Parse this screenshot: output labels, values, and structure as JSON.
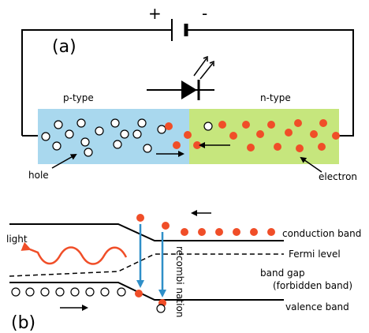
{
  "colors": {
    "p_region": "#a9d8ee",
    "n_region": "#c6e67d",
    "electron": "#f04e28",
    "hole_fill": "#ffffff",
    "wire": "#000000",
    "recombination_arrow": "#2f8fc8",
    "light_wave": "#f04e28"
  },
  "panel_a": {
    "label": "(a)",
    "battery": {
      "plus": "+",
      "minus": "-"
    },
    "p_type_label": "p-type",
    "n_type_label": "n-type",
    "hole_label": "hole",
    "electron_label": "electron",
    "icons": [
      "battery-icon",
      "led-diode-icon",
      "emitted-light-arrows-icon"
    ]
  },
  "panel_b": {
    "label": "(b)",
    "light_label": "light",
    "recombination_label": "recombi nation",
    "band_labels": {
      "conduction": "conduction band",
      "fermi": "Fermi level",
      "band_gap_line1": "band gap",
      "band_gap_line2": "(forbidden band)",
      "valence": "valence band"
    },
    "icons": [
      "light-wave-icon",
      "recombination-arrow-icon"
    ]
  }
}
